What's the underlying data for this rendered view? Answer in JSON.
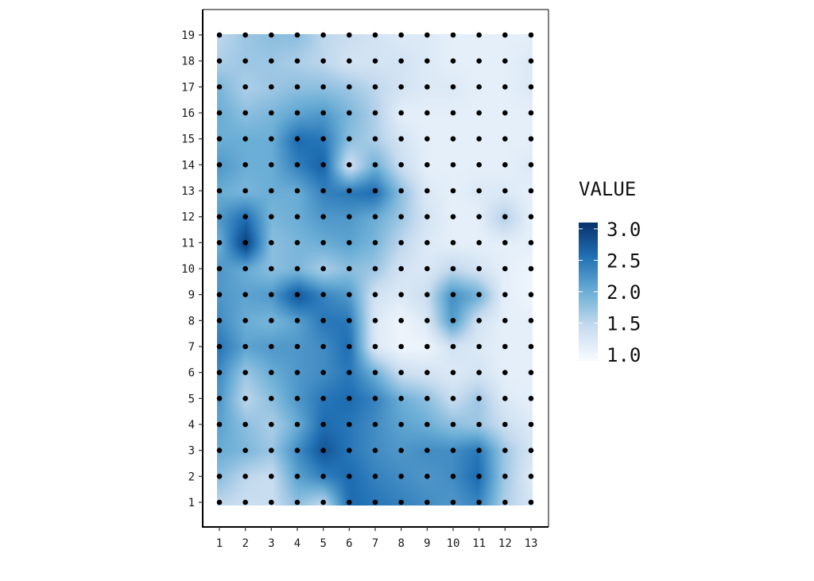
{
  "chart_data": {
    "type": "heatmap",
    "title": "",
    "xlabel": "",
    "ylabel": "",
    "x": [
      1,
      2,
      3,
      4,
      5,
      6,
      7,
      8,
      9,
      10,
      11,
      12,
      13
    ],
    "y": [
      1,
      2,
      3,
      4,
      5,
      6,
      7,
      8,
      9,
      10,
      11,
      12,
      13,
      14,
      15,
      16,
      17,
      18,
      19
    ],
    "xlim": [
      1,
      13
    ],
    "ylim": [
      1,
      19
    ],
    "legend": {
      "title": "VALUE",
      "ticks": [
        "1.0",
        "1.5",
        "2.0",
        "2.5",
        "3.0"
      ],
      "tick_values": [
        1.0,
        1.5,
        2.0,
        2.5,
        3.0
      ],
      "range": [
        0.9,
        3.1
      ],
      "placement": "right"
    },
    "colors": {
      "low": "#f7fbff",
      "mid": "#6baed6",
      "high": "#08306b",
      "points": "#000000"
    },
    "point_markers": true,
    "grid": false,
    "values": [
      [
        1.5,
        1.4,
        1.4,
        1.8,
        1.5,
        2.6,
        2.5,
        2.4,
        2.3,
        2.2,
        2.4,
        1.6,
        1.3
      ],
      [
        1.8,
        1.5,
        1.4,
        2.1,
        2.4,
        2.6,
        2.4,
        2.3,
        2.2,
        2.3,
        2.6,
        1.7,
        1.2
      ],
      [
        2.0,
        1.9,
        1.7,
        2.3,
        2.8,
        2.5,
        2.3,
        2.2,
        2.3,
        2.3,
        2.5,
        1.7,
        1.3
      ],
      [
        2.1,
        1.8,
        1.6,
        2.0,
        2.6,
        2.5,
        2.3,
        2.1,
        2.0,
        1.8,
        1.7,
        1.4,
        1.2
      ],
      [
        2.2,
        1.5,
        1.8,
        2.2,
        2.5,
        2.6,
        2.4,
        2.0,
        1.8,
        1.4,
        1.7,
        1.2,
        1.1
      ],
      [
        2.3,
        1.7,
        2.0,
        2.2,
        2.3,
        2.5,
        2.0,
        1.4,
        1.3,
        1.2,
        1.3,
        1.1,
        1.1
      ],
      [
        2.5,
        2.1,
        2.2,
        2.2,
        2.3,
        2.6,
        1.2,
        1.0,
        1.0,
        1.3,
        1.2,
        1.1,
        1.1
      ],
      [
        2.3,
        2.0,
        1.9,
        2.1,
        2.5,
        2.5,
        1.2,
        1.0,
        1.2,
        2.2,
        1.3,
        1.1,
        1.1
      ],
      [
        2.2,
        2.1,
        2.2,
        2.8,
        2.4,
        2.2,
        1.3,
        1.2,
        1.4,
        2.3,
        2.0,
        1.1,
        1.0
      ],
      [
        2.2,
        2.0,
        1.8,
        1.9,
        1.6,
        1.8,
        1.7,
        1.3,
        1.2,
        1.5,
        1.3,
        1.1,
        1.0
      ],
      [
        2.0,
        3.0,
        1.8,
        1.9,
        2.0,
        2.1,
        1.9,
        1.5,
        1.2,
        1.1,
        1.1,
        1.1,
        1.1
      ],
      [
        2.2,
        2.6,
        1.9,
        2.0,
        2.2,
        2.2,
        2.0,
        1.7,
        1.3,
        1.1,
        1.1,
        1.6,
        1.1
      ],
      [
        2.0,
        1.9,
        2.0,
        2.0,
        2.4,
        2.5,
        2.6,
        1.8,
        1.2,
        1.1,
        1.2,
        1.2,
        1.1
      ],
      [
        2.2,
        2.0,
        2.0,
        2.4,
        2.7,
        1.3,
        2.0,
        1.4,
        1.1,
        1.1,
        1.1,
        1.1,
        1.2
      ],
      [
        2.0,
        2.0,
        2.0,
        2.6,
        2.5,
        1.8,
        1.6,
        1.3,
        1.1,
        1.1,
        1.1,
        1.1,
        1.1
      ],
      [
        2.0,
        1.8,
        1.9,
        2.1,
        2.2,
        1.9,
        1.6,
        1.1,
        1.1,
        1.1,
        1.1,
        1.1,
        1.1
      ],
      [
        1.9,
        1.6,
        1.7,
        1.8,
        1.8,
        1.7,
        1.5,
        1.3,
        1.2,
        1.2,
        1.1,
        1.1,
        1.2
      ],
      [
        1.6,
        1.7,
        1.7,
        1.6,
        1.5,
        1.3,
        1.3,
        1.3,
        1.2,
        1.1,
        1.1,
        1.1,
        1.2
      ],
      [
        1.5,
        1.7,
        1.8,
        1.8,
        1.5,
        1.4,
        1.3,
        1.2,
        1.2,
        1.1,
        1.1,
        1.1,
        1.1
      ]
    ]
  }
}
